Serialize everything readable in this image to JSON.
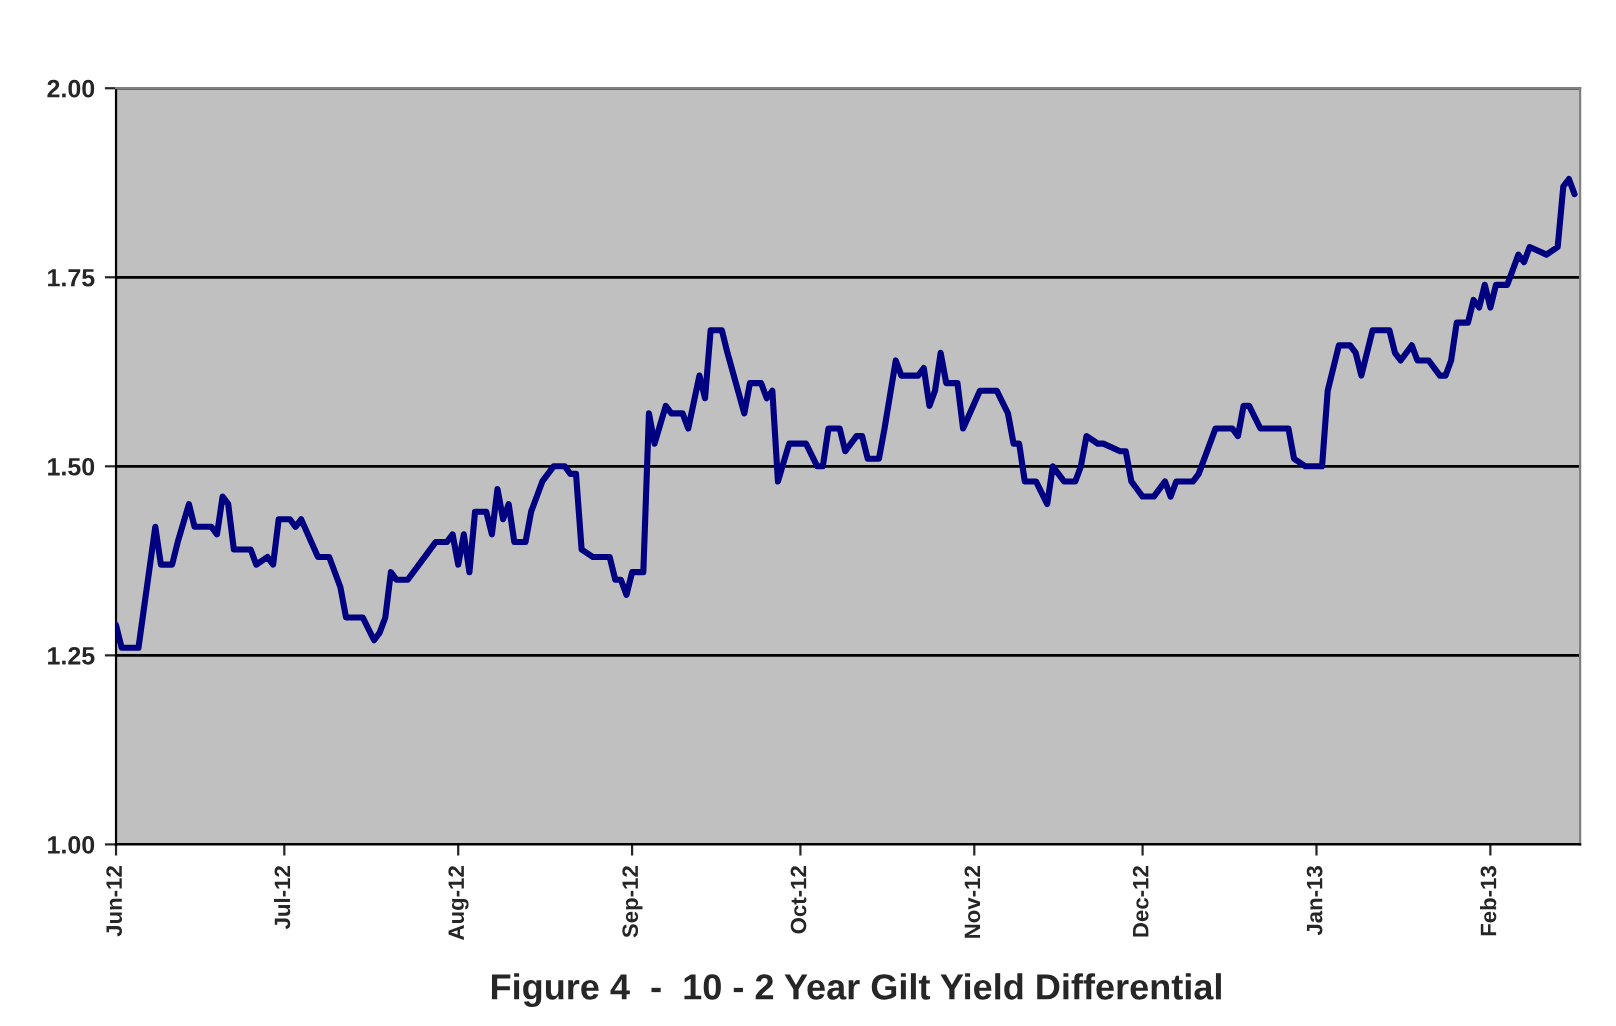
{
  "chart_data": {
    "type": "line",
    "title": "Figure 4  -  10 - 2 Year Gilt Yield Differential",
    "x": [
      "2012-06-01",
      "2012-06-02",
      "2012-06-05",
      "2012-06-08",
      "2012-06-09",
      "2012-06-11",
      "2012-06-12",
      "2012-06-14",
      "2012-06-15",
      "2012-06-18",
      "2012-06-19",
      "2012-06-20",
      "2012-06-21",
      "2012-06-22",
      "2012-06-25",
      "2012-06-26",
      "2012-06-28",
      "2012-06-29",
      "2012-06-30",
      "2012-07-02",
      "2012-07-03",
      "2012-07-04",
      "2012-07-07",
      "2012-07-09",
      "2012-07-11",
      "2012-07-12",
      "2012-07-15",
      "2012-07-17",
      "2012-07-18",
      "2012-07-19",
      "2012-07-20",
      "2012-07-21",
      "2012-07-23",
      "2012-07-25",
      "2012-07-26",
      "2012-07-28",
      "2012-07-30",
      "2012-07-31",
      "2012-08-01",
      "2012-08-02",
      "2012-08-03",
      "2012-08-04",
      "2012-08-06",
      "2012-08-07",
      "2012-08-08",
      "2012-08-09",
      "2012-08-10",
      "2012-08-11",
      "2012-08-13",
      "2012-08-14",
      "2012-08-16",
      "2012-08-18",
      "2012-08-20",
      "2012-08-21",
      "2012-08-22",
      "2012-08-23",
      "2012-08-25",
      "2012-08-28",
      "2012-08-29",
      "2012-08-30",
      "2012-08-31",
      "2012-09-01",
      "2012-09-03",
      "2012-09-04",
      "2012-09-05",
      "2012-09-07",
      "2012-09-08",
      "2012-09-10",
      "2012-09-11",
      "2012-09-13",
      "2012-09-14",
      "2012-09-15",
      "2012-09-17",
      "2012-09-18",
      "2012-09-21",
      "2012-09-22",
      "2012-09-24",
      "2012-09-25",
      "2012-09-26",
      "2012-09-27",
      "2012-09-29",
      "2012-10-01",
      "2012-10-02",
      "2012-10-04",
      "2012-10-05",
      "2012-10-06",
      "2012-10-08",
      "2012-10-09",
      "2012-10-10",
      "2012-10-11",
      "2012-10-12",
      "2012-10-13",
      "2012-10-15",
      "2012-10-16",
      "2012-10-18",
      "2012-10-19",
      "2012-10-22",
      "2012-10-23",
      "2012-10-24",
      "2012-10-25",
      "2012-10-26",
      "2012-10-27",
      "2012-10-29",
      "2012-10-30",
      "2012-11-02",
      "2012-11-05",
      "2012-11-07",
      "2012-11-08",
      "2012-11-09",
      "2012-11-10",
      "2012-11-12",
      "2012-11-14",
      "2012-11-15",
      "2012-11-17",
      "2012-11-19",
      "2012-11-20",
      "2012-11-21",
      "2012-11-23",
      "2012-11-24",
      "2012-11-27",
      "2012-11-28",
      "2012-11-29",
      "2012-11-30",
      "2012-12-01",
      "2012-12-03",
      "2012-12-05",
      "2012-12-06",
      "2012-12-07",
      "2012-12-10",
      "2012-12-11",
      "2012-12-13",
      "2012-12-14",
      "2012-12-17",
      "2012-12-18",
      "2012-12-19",
      "2012-12-20",
      "2012-12-22",
      "2012-12-27",
      "2012-12-28",
      "2012-12-30",
      "2013-01-02",
      "2013-01-03",
      "2013-01-05",
      "2013-01-07",
      "2013-01-08",
      "2013-01-09",
      "2013-01-11",
      "2013-01-14",
      "2013-01-15",
      "2013-01-16",
      "2013-01-18",
      "2013-01-19",
      "2013-01-21",
      "2013-01-23",
      "2013-01-24",
      "2013-01-25",
      "2013-01-26",
      "2013-01-28",
      "2013-01-29",
      "2013-01-30",
      "2013-01-31",
      "2013-02-01",
      "2013-02-02",
      "2013-02-04",
      "2013-02-06",
      "2013-02-07",
      "2013-02-08",
      "2013-02-11",
      "2013-02-13",
      "2013-02-14",
      "2013-02-15",
      "2013-02-16"
    ],
    "series": [
      {
        "color": "#000080",
        "values": [
          1.29,
          1.26,
          1.26,
          1.42,
          1.37,
          1.37,
          1.4,
          1.45,
          1.42,
          1.42,
          1.41,
          1.46,
          1.45,
          1.39,
          1.39,
          1.37,
          1.38,
          1.37,
          1.43,
          1.43,
          1.42,
          1.43,
          1.38,
          1.38,
          1.34,
          1.3,
          1.3,
          1.27,
          1.28,
          1.3,
          1.36,
          1.35,
          1.35,
          1.37,
          1.38,
          1.4,
          1.4,
          1.41,
          1.37,
          1.41,
          1.36,
          1.44,
          1.44,
          1.41,
          1.47,
          1.43,
          1.45,
          1.4,
          1.4,
          1.44,
          1.48,
          1.5,
          1.5,
          1.49,
          1.49,
          1.39,
          1.38,
          1.38,
          1.35,
          1.35,
          1.33,
          1.36,
          1.36,
          1.57,
          1.53,
          1.58,
          1.57,
          1.57,
          1.55,
          1.62,
          1.59,
          1.68,
          1.68,
          1.65,
          1.57,
          1.61,
          1.61,
          1.59,
          1.6,
          1.48,
          1.53,
          1.53,
          1.53,
          1.5,
          1.5,
          1.55,
          1.55,
          1.52,
          1.53,
          1.54,
          1.54,
          1.51,
          1.51,
          1.55,
          1.64,
          1.62,
          1.62,
          1.63,
          1.58,
          1.6,
          1.65,
          1.61,
          1.61,
          1.55,
          1.6,
          1.6,
          1.57,
          1.53,
          1.53,
          1.48,
          1.48,
          1.45,
          1.5,
          1.48,
          1.48,
          1.5,
          1.54,
          1.53,
          1.53,
          1.52,
          1.52,
          1.48,
          1.47,
          1.46,
          1.46,
          1.48,
          1.46,
          1.48,
          1.48,
          1.49,
          1.53,
          1.55,
          1.55,
          1.54,
          1.58,
          1.58,
          1.55,
          1.55,
          1.51,
          1.5,
          1.5,
          1.6,
          1.66,
          1.66,
          1.65,
          1.62,
          1.68,
          1.68,
          1.65,
          1.64,
          1.66,
          1.64,
          1.64,
          1.62,
          1.62,
          1.64,
          1.69,
          1.69,
          1.72,
          1.71,
          1.74,
          1.71,
          1.74,
          1.74,
          1.78,
          1.77,
          1.79,
          1.78,
          1.79,
          1.87,
          1.88,
          1.86
        ]
      }
    ],
    "xlim": [
      "2012-06-01",
      "2013-02-17"
    ],
    "xticks": [
      {
        "value": "2012-06-01",
        "label": "Jun-12"
      },
      {
        "value": "2012-07-01",
        "label": "Jul-12"
      },
      {
        "value": "2012-08-01",
        "label": "Aug-12"
      },
      {
        "value": "2012-09-01",
        "label": "Sep-12"
      },
      {
        "value": "2012-10-01",
        "label": "Oct-12"
      },
      {
        "value": "2012-11-01",
        "label": "Nov-12"
      },
      {
        "value": "2012-12-01",
        "label": "Dec-12"
      },
      {
        "value": "2013-01-01",
        "label": "Jan-13"
      },
      {
        "value": "2013-02-01",
        "label": "Feb-13"
      }
    ],
    "ylim": [
      1.0,
      2.0
    ],
    "yticks": [
      {
        "value": 1.0,
        "label": "1.00"
      },
      {
        "value": 1.25,
        "label": "1.25"
      },
      {
        "value": 1.5,
        "label": "1.50"
      },
      {
        "value": 1.75,
        "label": "1.75"
      },
      {
        "value": 2.0,
        "label": "2.00"
      }
    ],
    "grid": "y",
    "marker": "none",
    "line_style": "solid"
  }
}
